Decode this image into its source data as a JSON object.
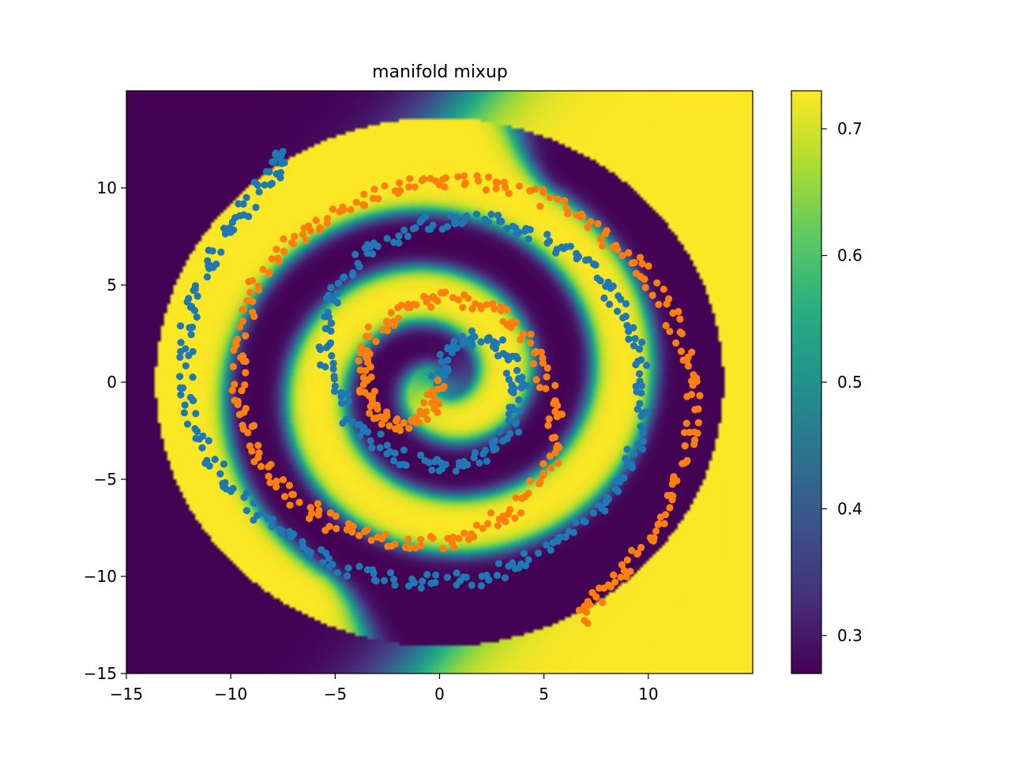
{
  "chart_data": {
    "type": "scatter",
    "title": "manifold mixup",
    "xlabel": "",
    "ylabel": "",
    "xlim": [
      -15,
      15
    ],
    "ylim": [
      -15,
      15
    ],
    "x_ticks": [
      -15,
      -10,
      -5,
      0,
      5,
      10
    ],
    "y_ticks": [
      -15,
      -10,
      -5,
      0,
      5,
      10
    ],
    "x_tick_labels": [
      "−15",
      "−10",
      "−5",
      "0",
      "5",
      "10"
    ],
    "y_tick_labels": [
      "−15",
      "−10",
      "−5",
      "0",
      "5",
      "10"
    ],
    "grid": false,
    "legend": false,
    "background": {
      "type": "heatmap",
      "description_values": "predicted probability surface over the plane",
      "colormap": "viridis",
      "vmin": 0.27,
      "vmax": 0.73
    },
    "colorbar": {
      "ticks": [
        0.3,
        0.4,
        0.5,
        0.6,
        0.7
      ],
      "tick_labels": [
        "0.3",
        "0.4",
        "0.5",
        "0.6",
        "0.7"
      ],
      "range": [
        0.27,
        0.73
      ]
    },
    "series": [
      {
        "color": "#1f77b4",
        "shape": "spiral",
        "points_approx": [
          [
            0.0,
            0.0
          ],
          [
            0.4,
            1.8
          ],
          [
            1.6,
            2.4
          ],
          [
            3.0,
            1.8
          ],
          [
            3.9,
            0.0
          ],
          [
            3.6,
            -2.1
          ],
          [
            2.1,
            -3.8
          ],
          [
            0.0,
            -4.4
          ],
          [
            -2.5,
            -3.6
          ],
          [
            -4.4,
            -1.6
          ],
          [
            -5.6,
            1.2
          ],
          [
            -5.4,
            4.0
          ],
          [
            -3.8,
            6.6
          ],
          [
            -1.4,
            8.0
          ],
          [
            1.4,
            8.5
          ],
          [
            4.2,
            7.9
          ],
          [
            6.6,
            6.5
          ],
          [
            8.5,
            4.2
          ],
          [
            9.6,
            1.4
          ],
          [
            9.8,
            -1.6
          ],
          [
            8.9,
            -4.6
          ],
          [
            7.2,
            -7.0
          ],
          [
            4.8,
            -8.9
          ],
          [
            2.0,
            -10.1
          ],
          [
            -1.0,
            -10.3
          ],
          [
            -4.2,
            -9.7
          ],
          [
            -7.0,
            -8.3
          ],
          [
            -9.4,
            -6.2
          ],
          [
            -11.2,
            -3.5
          ],
          [
            -12.2,
            -0.4
          ],
          [
            -12.1,
            2.8
          ],
          [
            -11.2,
            5.8
          ],
          [
            -9.8,
            8.4
          ],
          [
            -8.0,
            10.7
          ],
          [
            -7.6,
            12.0
          ]
        ]
      },
      {
        "color": "#ff7f0e",
        "shape": "spiral",
        "points_approx": [
          [
            0.0,
            0.0
          ],
          [
            -0.6,
            -1.7
          ],
          [
            -1.9,
            -2.3
          ],
          [
            -3.1,
            -1.5
          ],
          [
            -3.7,
            0.2
          ],
          [
            -3.4,
            2.2
          ],
          [
            -1.9,
            3.8
          ],
          [
            0.2,
            4.4
          ],
          [
            2.6,
            3.9
          ],
          [
            4.4,
            1.8
          ],
          [
            5.6,
            -1.0
          ],
          [
            5.4,
            -3.9
          ],
          [
            3.9,
            -6.4
          ],
          [
            1.4,
            -8.0
          ],
          [
            -1.4,
            -8.4
          ],
          [
            -4.3,
            -7.8
          ],
          [
            -6.7,
            -6.3
          ],
          [
            -8.5,
            -4.0
          ],
          [
            -9.5,
            -1.2
          ],
          [
            -9.7,
            1.8
          ],
          [
            -8.9,
            4.8
          ],
          [
            -7.1,
            7.2
          ],
          [
            -4.7,
            8.9
          ],
          [
            -1.8,
            10.1
          ],
          [
            1.2,
            10.4
          ],
          [
            4.3,
            9.8
          ],
          [
            7.1,
            8.3
          ],
          [
            9.4,
            6.1
          ],
          [
            11.1,
            3.4
          ],
          [
            12.2,
            0.3
          ],
          [
            12.1,
            -2.9
          ],
          [
            11.2,
            -5.9
          ],
          [
            9.7,
            -8.6
          ],
          [
            7.8,
            -10.8
          ],
          [
            6.6,
            -12.4
          ]
        ]
      }
    ]
  }
}
